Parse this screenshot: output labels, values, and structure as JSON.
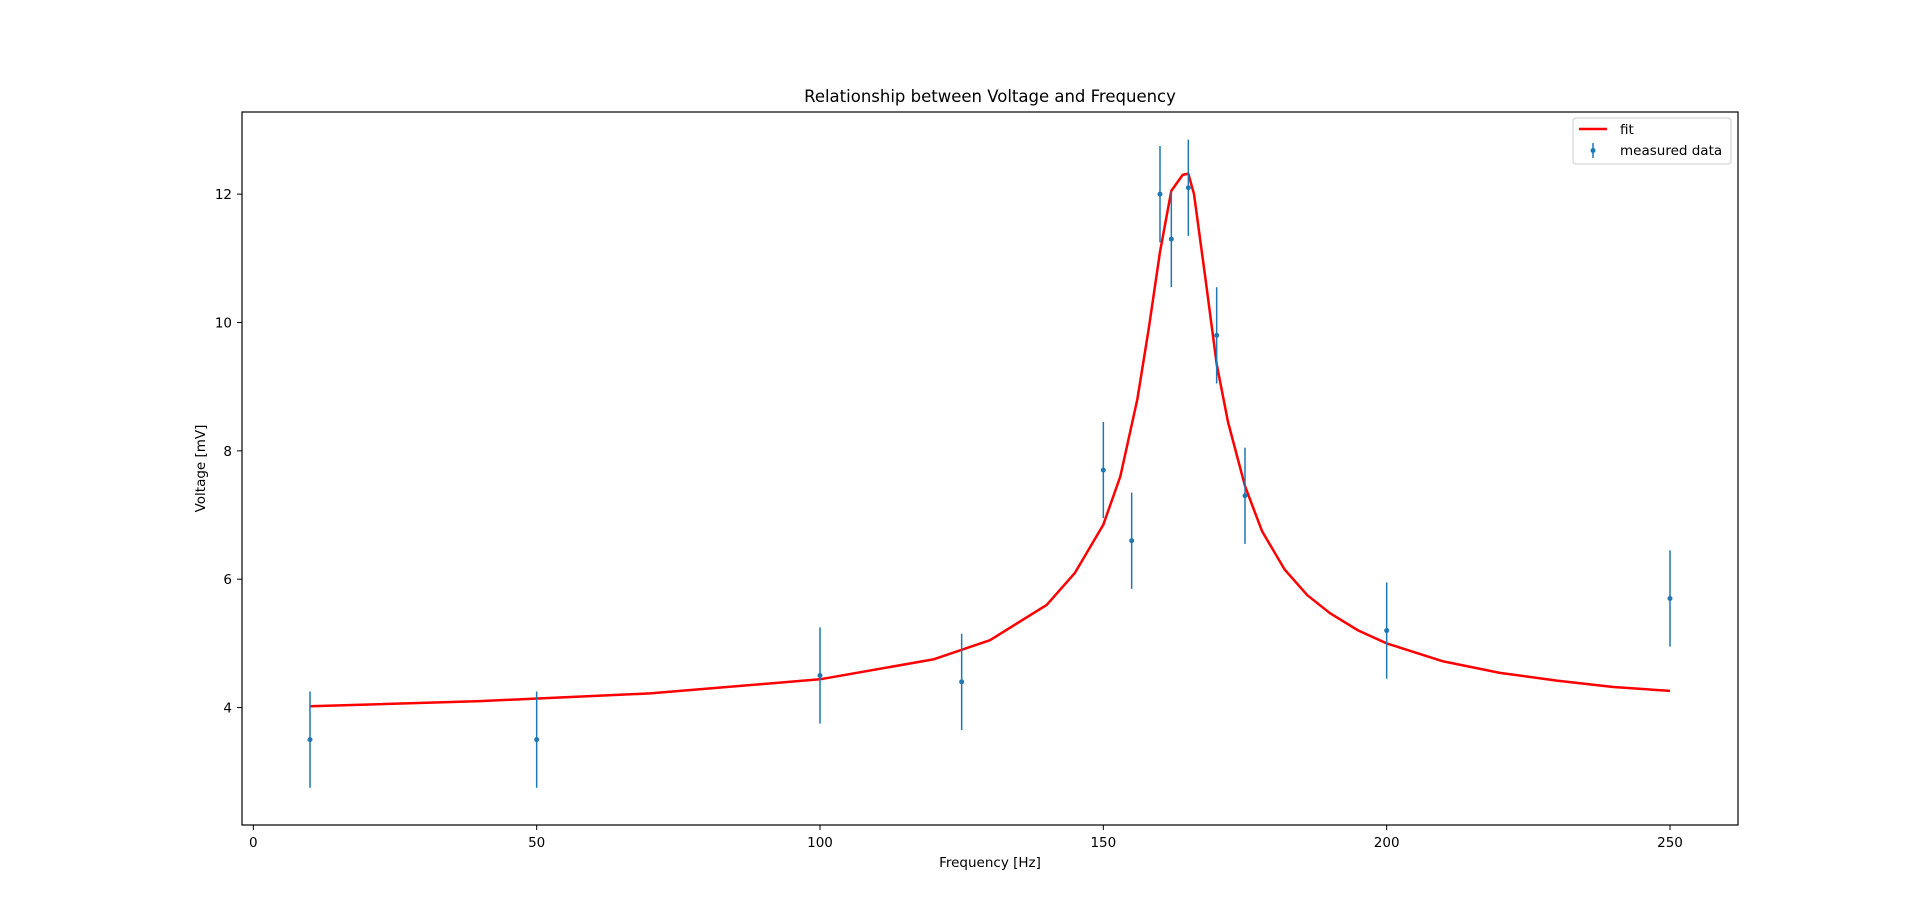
{
  "chart_data": {
    "type": "scatter",
    "title": "Relationship between Voltage and Frequency",
    "xlabel": "Frequency [Hz]",
    "ylabel": "Voltage [mV]",
    "xlim": [
      -2,
      262
    ],
    "ylim": [
      2.17,
      13.28
    ],
    "xticks": [
      0,
      50,
      100,
      150,
      200,
      250
    ],
    "yticks": [
      4,
      6,
      8,
      10,
      12
    ],
    "grid": false,
    "legend_position": "top-right",
    "series": [
      {
        "name": "measured data",
        "kind": "errorbar",
        "color": "#1f77b4",
        "x": [
          10,
          50,
          100,
          125,
          150,
          155,
          160,
          162,
          165,
          170,
          175,
          200,
          250
        ],
        "y": [
          3.5,
          3.5,
          4.5,
          4.4,
          7.7,
          6.6,
          12.0,
          11.3,
          12.1,
          9.8,
          7.3,
          5.2,
          5.7
        ],
        "yerr": 0.75
      },
      {
        "name": "fit",
        "kind": "line",
        "color": "#ff0000",
        "x": [
          10,
          40,
          70,
          100,
          120,
          130,
          140,
          145,
          150,
          153,
          156,
          158,
          160,
          162,
          164,
          165,
          166,
          168,
          170,
          172,
          175,
          178,
          182,
          186,
          190,
          195,
          200,
          210,
          220,
          230,
          240,
          250
        ],
        "y": [
          4.02,
          4.1,
          4.22,
          4.44,
          4.75,
          5.05,
          5.6,
          6.1,
          6.85,
          7.6,
          8.8,
          9.9,
          11.1,
          12.05,
          12.3,
          12.32,
          12.0,
          10.7,
          9.35,
          8.45,
          7.45,
          6.75,
          6.15,
          5.75,
          5.47,
          5.2,
          5.0,
          4.72,
          4.54,
          4.42,
          4.32,
          4.26
        ]
      }
    ]
  }
}
